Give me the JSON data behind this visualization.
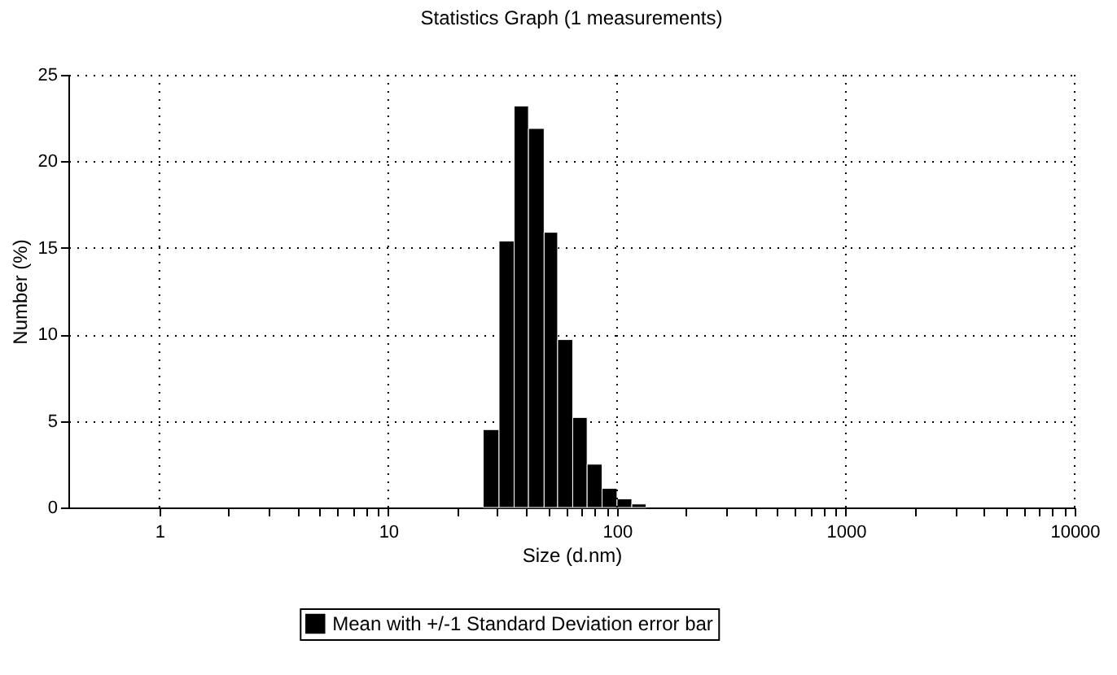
{
  "chart_data": {
    "type": "histogram",
    "title": "Statistics Graph (1 measurements)",
    "xlabel": "Size (d.nm)",
    "ylabel": "Number (%)",
    "bins": [
      26,
      30.5,
      35.5,
      41,
      48,
      55,
      64,
      74,
      86,
      100,
      116,
      134
    ],
    "series": [
      {
        "name": "Mean with +/-1 Standard Deviation error bar",
        "color": "#000000",
        "values": [
          4.5,
          15.4,
          23.2,
          21.9,
          15.9,
          9.7,
          5.2,
          2.5,
          1.1,
          0.5,
          0.2
        ]
      }
    ],
    "log": "x",
    "xlim": [
      0.4,
      10000
    ],
    "xticks": [
      1,
      {
        "value": 2,
        "label": null
      },
      {
        "value": 3,
        "label": null
      },
      {
        "value": 4,
        "label": null
      },
      {
        "value": 5,
        "label": null
      },
      {
        "value": 6,
        "label": null
      },
      {
        "value": 7,
        "label": null
      },
      {
        "value": 8,
        "label": null
      },
      {
        "value": 9,
        "label": null
      },
      10,
      {
        "value": 20,
        "label": null
      },
      {
        "value": 30,
        "label": null
      },
      {
        "value": 40,
        "label": null
      },
      {
        "value": 50,
        "label": null
      },
      {
        "value": 60,
        "label": null
      },
      {
        "value": 70,
        "label": null
      },
      {
        "value": 80,
        "label": null
      },
      {
        "value": 90,
        "label": null
      },
      100,
      {
        "value": 200,
        "label": null
      },
      {
        "value": 300,
        "label": null
      },
      {
        "value": 400,
        "label": null
      },
      {
        "value": 500,
        "label": null
      },
      {
        "value": 600,
        "label": null
      },
      {
        "value": 700,
        "label": null
      },
      {
        "value": 800,
        "label": null
      },
      {
        "value": 900,
        "label": null
      },
      1000,
      {
        "value": 2000,
        "label": null
      },
      {
        "value": 3000,
        "label": null
      },
      {
        "value": 4000,
        "label": null
      },
      {
        "value": 5000,
        "label": null
      },
      {
        "value": 6000,
        "label": null
      },
      {
        "value": 7000,
        "label": null
      },
      {
        "value": 8000,
        "label": null
      },
      {
        "value": 9000,
        "label": null
      },
      10000
    ],
    "ylim": [
      0,
      25
    ],
    "yticks": [
      0,
      5,
      10,
      15,
      20,
      25
    ],
    "grid": true,
    "legend": "bottom"
  }
}
